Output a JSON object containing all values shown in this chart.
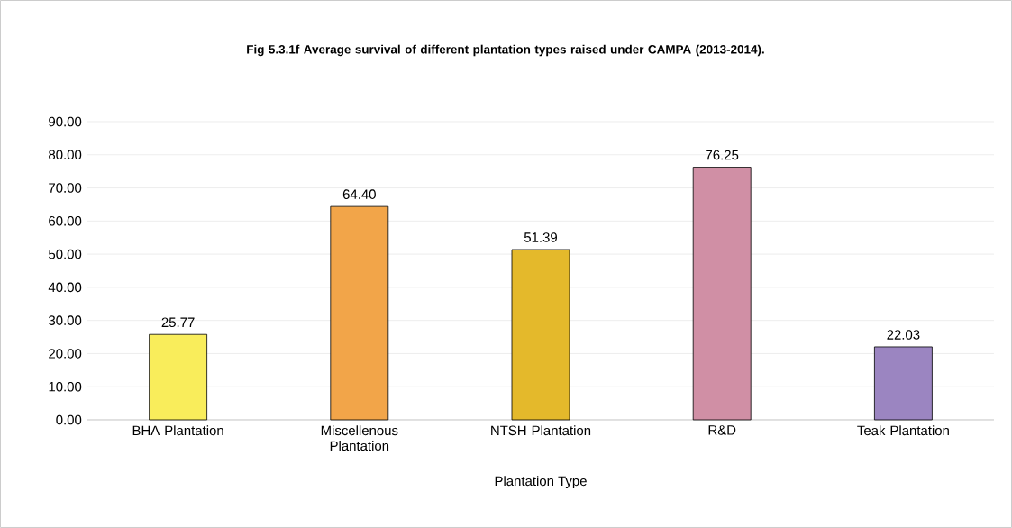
{
  "chart_data": {
    "type": "bar",
    "title": "Fig 5.3.1f Average survival of different plantation types raised under CAMPA (2013-2014).",
    "xlabel": "Plantation Type",
    "categories": [
      "BHA Plantation",
      "Miscellenous Plantation",
      "NTSH Plantation",
      "R&D",
      "Teak Plantation"
    ],
    "values": [
      25.77,
      64.4,
      51.39,
      76.25,
      22.03
    ],
    "value_labels": [
      "25.77",
      "64.40",
      "51.39",
      "76.25",
      "22.03"
    ],
    "colors": [
      "#f9ed5b",
      "#f2a549",
      "#e4b92b",
      "#d08fa5",
      "#9b85c1"
    ],
    "ylim": [
      0,
      90
    ],
    "yticks": [
      {
        "value": 0,
        "label": "0.00"
      },
      {
        "value": 10,
        "label": "10.00"
      },
      {
        "value": 20,
        "label": "20.00"
      },
      {
        "value": 30,
        "label": "30.00"
      },
      {
        "value": 40,
        "label": "40.00"
      },
      {
        "value": 50,
        "label": "50.00"
      },
      {
        "value": 60,
        "label": "60.00"
      },
      {
        "value": 70,
        "label": "70.00"
      },
      {
        "value": 80,
        "label": "80.00"
      },
      {
        "value": 90,
        "label": "90.00"
      }
    ],
    "grid": "y"
  }
}
